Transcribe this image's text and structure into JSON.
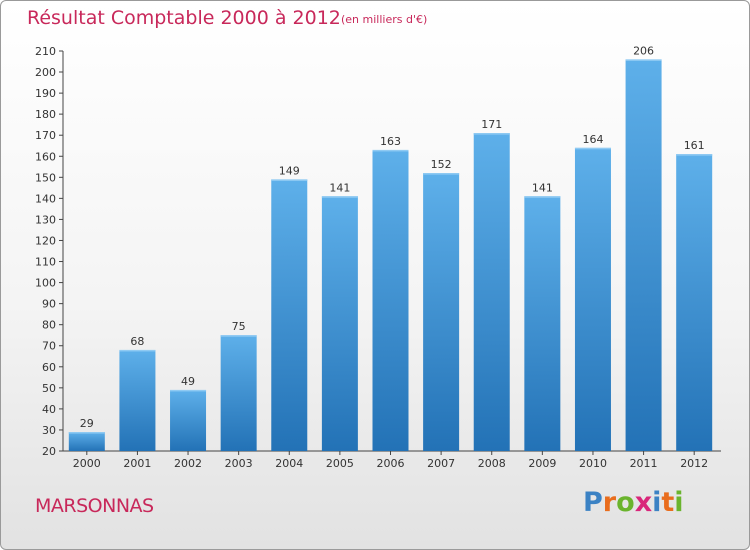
{
  "header": {
    "title": "Résultat Comptable 2000 à 2012",
    "subtitle": "(en milliers d'€)"
  },
  "footer": {
    "city": "MARSONNAS",
    "logo": [
      "P",
      "r",
      "o",
      "x",
      "i",
      "t",
      "i"
    ]
  },
  "colors": {
    "accent": "#c8285a",
    "bar_top": "#5eb0ea",
    "bar_bottom": "#2372b6",
    "logo": [
      "#3b82c4",
      "#e96d1d",
      "#6ab42d",
      "#d9267a",
      "#3b82c4",
      "#e96d1d",
      "#6ab42d"
    ]
  },
  "chart_data": {
    "type": "bar",
    "title": "Résultat Comptable 2000 à 2012",
    "subtitle": "(en milliers d'€)",
    "categories": [
      "2000",
      "2001",
      "2002",
      "2003",
      "2004",
      "2005",
      "2006",
      "2007",
      "2008",
      "2009",
      "2010",
      "2011",
      "2012"
    ],
    "values": [
      29,
      68,
      49,
      75,
      149,
      141,
      163,
      152,
      171,
      141,
      164,
      206,
      161
    ],
    "ylim": [
      20,
      210
    ],
    "yticks": [
      20,
      30,
      40,
      50,
      60,
      70,
      80,
      90,
      100,
      110,
      120,
      130,
      140,
      150,
      160,
      170,
      180,
      190,
      200,
      210
    ],
    "xlabel": "",
    "ylabel": "",
    "grid": false
  }
}
